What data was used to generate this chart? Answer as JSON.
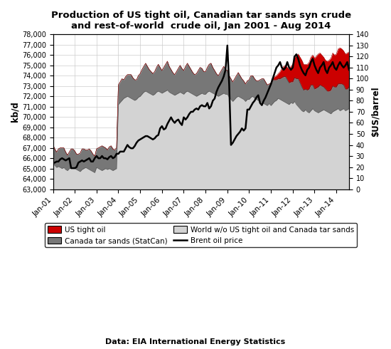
{
  "title_line1": "Production of US tight oil, Canadian tar sands syn crude",
  "title_line2": "and rest-of-world  crude oil, Jan 2001 - Aug 2014",
  "ylabel_left": "kb/d",
  "ylabel_right": "$US/barrel",
  "source": "Data: EIA International Energy Statistics",
  "ylim_left": [
    63000,
    78000
  ],
  "ylim_right": [
    0,
    140
  ],
  "yticks_left": [
    63000,
    64000,
    65000,
    66000,
    67000,
    68000,
    69000,
    70000,
    71000,
    72000,
    73000,
    74000,
    75000,
    76000,
    77000,
    78000
  ],
  "yticks_right": [
    0,
    10,
    20,
    30,
    40,
    50,
    60,
    70,
    80,
    90,
    100,
    110,
    120,
    130,
    140
  ],
  "xtick_labels": [
    "Jan-01",
    "Jan-02",
    "Jan-03",
    "Jan-04",
    "Jan-05",
    "Jan-06",
    "Jan-07",
    "Jan-08",
    "Jan-09",
    "Jan-10",
    "Jan-11",
    "Jan-12",
    "Jan-13",
    "Jan-14"
  ],
  "color_world": "#d3d3d3",
  "color_canada": "#777777",
  "color_us": "#cc0000",
  "color_brent": "#000000",
  "color_background": "#ffffff",
  "world_base": [
    65500,
    65300,
    65100,
    65200,
    65100,
    65000,
    65100,
    64900,
    64800,
    65000,
    65100,
    65000,
    65000,
    64900,
    64800,
    64700,
    64900,
    65000,
    65100,
    65000,
    64900,
    64800,
    64700,
    64600,
    65100,
    65000,
    64900,
    64800,
    64900,
    65000,
    64900,
    65000,
    64900,
    64800,
    64900,
    65000,
    71200,
    71400,
    71600,
    71800,
    71900,
    72000,
    71900,
    71800,
    71700,
    71600,
    71700,
    71900,
    72000,
    72200,
    72400,
    72500,
    72400,
    72300,
    72200,
    72100,
    72200,
    72400,
    72500,
    72400,
    72300,
    72400,
    72500,
    72600,
    72400,
    72300,
    72200,
    72100,
    72200,
    72300,
    72400,
    72300,
    72200,
    72400,
    72500,
    72400,
    72300,
    72200,
    72100,
    72000,
    72100,
    72200,
    72300,
    72200,
    72200,
    72400,
    72500,
    72400,
    72300,
    72200,
    72100,
    72000,
    72100,
    72200,
    72300,
    72200,
    72200,
    71900,
    71700,
    71500,
    71700,
    71900,
    72000,
    71900,
    71800,
    71700,
    71500,
    71700,
    71700,
    71900,
    72000,
    71800,
    71700,
    71600,
    71500,
    71400,
    71300,
    71200,
    71100,
    71300,
    71100,
    71300,
    71500,
    71600,
    71800,
    71700,
    71600,
    71500,
    71400,
    71300,
    71200,
    71400,
    71300,
    71500,
    71200,
    71000,
    70800,
    70600,
    70500,
    70700,
    70500,
    70400,
    70600,
    70800,
    70600,
    70500,
    70400,
    70500,
    70600,
    70700,
    70600,
    70500,
    70400,
    70300,
    70500,
    70600,
    70700,
    70800,
    70600,
    70700,
    70800,
    70600,
    70700,
    70800,
    70900,
    70800,
    70700,
    70600,
    70500,
    70600,
    70700,
    70800
  ],
  "canada_add": [
    1800,
    1600,
    1500,
    1700,
    1900,
    2000,
    1900,
    1700,
    1500,
    1600,
    1800,
    1900,
    1700,
    1500,
    1600,
    1800,
    2000,
    1900,
    1700,
    1800,
    2000,
    1900,
    1700,
    1600,
    1800,
    2000,
    2200,
    2400,
    2200,
    2000,
    1900,
    2100,
    2300,
    2100,
    1900,
    2000,
    1900,
    2000,
    2100,
    1800,
    2000,
    2100,
    2200,
    2300,
    2100,
    2000,
    1900,
    2100,
    2200,
    2400,
    2500,
    2700,
    2500,
    2300,
    2200,
    2100,
    2200,
    2400,
    2600,
    2400,
    2200,
    2400,
    2600,
    2800,
    2500,
    2300,
    2100,
    2000,
    2200,
    2400,
    2600,
    2400,
    2300,
    2500,
    2700,
    2500,
    2300,
    2100,
    2000,
    2200,
    2400,
    2600,
    2400,
    2200,
    2200,
    2400,
    2600,
    2800,
    2500,
    2300,
    2100,
    2000,
    2200,
    2400,
    2600,
    2400,
    2300,
    2100,
    2000,
    1900,
    2000,
    2100,
    2300,
    2100,
    1900,
    1800,
    1700,
    1800,
    1900,
    2100,
    2000,
    1900,
    1800,
    1900,
    2100,
    2300,
    2400,
    2200,
    2000,
    1900,
    2100,
    2300,
    2100,
    2000,
    1900,
    2000,
    2200,
    2400,
    2500,
    2300,
    2100,
    2000,
    2100,
    2300,
    2500,
    2700,
    2500,
    2300,
    2100,
    2000,
    2100,
    2300,
    2500,
    2300,
    2100,
    2300,
    2500,
    2600,
    2400,
    2200,
    2100,
    2000,
    2100,
    2300,
    2500,
    2300,
    2200,
    2400,
    2600,
    2500,
    2300,
    2100,
    2000,
    2100,
    2300,
    2500,
    2600,
    2500,
    2300,
    2400,
    2600,
    2500
  ],
  "us_add": [
    0,
    0,
    0,
    0,
    0,
    0,
    0,
    0,
    0,
    0,
    0,
    0,
    0,
    0,
    0,
    0,
    0,
    0,
    0,
    0,
    0,
    0,
    0,
    0,
    0,
    0,
    0,
    0,
    0,
    0,
    0,
    0,
    0,
    0,
    0,
    0,
    0,
    0,
    0,
    0,
    0,
    0,
    0,
    0,
    0,
    0,
    0,
    0,
    0,
    0,
    0,
    0,
    0,
    0,
    0,
    0,
    0,
    0,
    0,
    0,
    0,
    0,
    0,
    0,
    0,
    0,
    0,
    0,
    0,
    0,
    0,
    0,
    0,
    0,
    0,
    0,
    0,
    0,
    0,
    0,
    0,
    0,
    0,
    0,
    0,
    0,
    0,
    0,
    0,
    0,
    0,
    0,
    0,
    0,
    0,
    0,
    0,
    0,
    0,
    0,
    0,
    0,
    0,
    0,
    0,
    0,
    0,
    0,
    0,
    0,
    0,
    0,
    0,
    0,
    0,
    0,
    0,
    0,
    0,
    0,
    100,
    200,
    300,
    400,
    500,
    700,
    900,
    1000,
    1100,
    1200,
    1300,
    1500,
    1700,
    2000,
    2200,
    2400,
    2500,
    2600,
    2500,
    2400,
    2500,
    2600,
    2700,
    2900,
    3000,
    3100,
    3200,
    3100,
    3000,
    2900,
    2800,
    2900,
    3000,
    3100,
    3200,
    3100,
    3200,
    3400,
    3500,
    3400,
    3300,
    3400,
    3500,
    3400,
    3500,
    3600,
    3700,
    3600,
    3700,
    3800,
    3900,
    3800
  ],
  "brent": [
    24,
    24,
    25,
    25,
    27,
    28,
    27,
    26,
    27,
    28,
    19,
    19,
    19,
    20,
    24,
    25,
    26,
    25,
    26,
    27,
    28,
    25,
    25,
    28,
    30,
    28,
    28,
    30,
    28,
    28,
    27,
    29,
    30,
    28,
    29,
    32,
    32,
    34,
    34,
    34,
    37,
    40,
    38,
    37,
    37,
    39,
    42,
    44,
    45,
    46,
    47,
    48,
    48,
    47,
    46,
    45,
    46,
    48,
    49,
    55,
    57,
    54,
    55,
    59,
    62,
    65,
    62,
    60,
    62,
    63,
    60,
    58,
    65,
    63,
    65,
    68,
    70,
    70,
    72,
    73,
    72,
    75,
    76,
    75,
    75,
    78,
    73,
    75,
    80,
    82,
    88,
    92,
    95,
    98,
    102,
    108,
    130,
    95,
    40,
    42,
    45,
    48,
    50,
    52,
    55,
    53,
    55,
    72,
    72,
    75,
    78,
    80,
    83,
    85,
    78,
    76,
    80,
    83,
    87,
    91,
    95,
    100,
    105,
    110,
    112,
    115,
    110,
    108,
    110,
    115,
    110,
    108,
    110,
    120,
    122,
    118,
    112,
    108,
    105,
    103,
    108,
    110,
    115,
    118,
    112,
    108,
    105,
    110,
    112,
    115,
    108,
    105,
    110,
    112,
    115,
    110,
    108,
    112,
    115,
    112,
    110,
    112,
    115,
    108,
    105,
    108,
    112,
    115,
    108,
    105,
    108,
    107
  ]
}
